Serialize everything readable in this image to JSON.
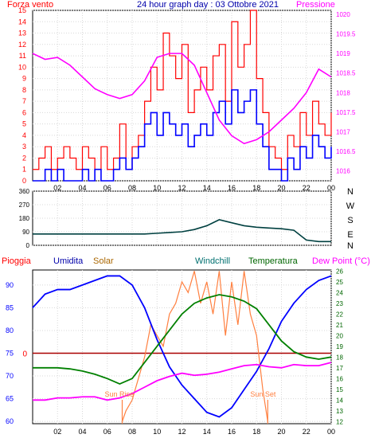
{
  "colors": {
    "wind": "#ff0000",
    "gust_avg": "#0000ff",
    "pressure": "#ff00ff",
    "direction": "#004040",
    "rain": "#ff0000",
    "humidity": "#0000ff",
    "solar": "#ff8040",
    "windchill": "#008080",
    "temperature": "#008000",
    "dewpoint": "#ff00ff",
    "label_umidita": "#0000aa",
    "label_solar": "#aa6600",
    "label_windchill": "#007070",
    "label_temperatura": "#006600",
    "label_dewpoint": "#ff00ff",
    "sun_label": "#ff8040",
    "frame": "#000000",
    "zero_line": "#aa0000"
  },
  "labels": {
    "forza_vento": "Forza vento",
    "title": "24 hour graph day : 03 Ottobre 2021",
    "pressione": "Pressione",
    "pioggia": "Pioggia",
    "umidita": "Umidita",
    "solar": "Solar",
    "windchill": "Windchill",
    "temperatura": "Temperatura",
    "dew_point": "Dew Point (°C)",
    "sun_rise": "Sun Rise",
    "sun_set": "Sun Set",
    "zero_mark": "0"
  },
  "chart_data": [
    {
      "type": "line",
      "name": "wind-pressure",
      "x_ticks": [
        "02",
        "04",
        "06",
        "08",
        "10",
        "12",
        "14",
        "16",
        "18",
        "20",
        "22",
        "00"
      ],
      "y_left_ticks": [
        "15",
        "14",
        "13",
        "12",
        "11",
        "10",
        "9",
        "8",
        "7",
        "6",
        "5",
        "4",
        "3",
        "2",
        "1",
        "0"
      ],
      "y_right_ticks": [
        "1020",
        "1019.5",
        "1019",
        "1018.5",
        "1018",
        "1017.5",
        "1017",
        "1016.5",
        "1016"
      ],
      "ylim_left": [
        0,
        15
      ],
      "ylim_right": [
        1015.75,
        1020.1
      ],
      "wind_x": [
        0,
        0.5,
        1,
        1.5,
        2,
        2.5,
        3,
        3.5,
        4,
        4.5,
        5,
        5.5,
        6,
        6.5,
        7,
        7.5,
        8,
        8.5,
        9,
        9.5,
        10,
        10.5,
        11,
        11.5,
        12,
        12.5,
        13,
        13.5,
        14,
        14.5,
        15,
        15.5,
        16,
        16.5,
        17,
        17.5,
        18,
        18.5,
        19,
        19.5,
        20,
        20.5,
        21,
        21.5,
        22,
        22.5,
        23,
        23.5,
        24
      ],
      "wind_y": [
        1,
        2,
        3,
        1,
        2,
        3,
        2,
        1,
        3,
        2,
        1,
        3,
        1,
        2,
        5,
        1,
        3,
        4,
        7,
        10,
        8,
        13,
        11,
        9,
        12,
        6,
        8,
        10,
        8,
        11,
        12,
        7,
        14,
        10,
        12,
        15,
        9,
        6,
        3,
        2,
        1,
        4,
        3,
        6,
        4,
        7,
        5,
        4,
        6
      ],
      "avg_y": [
        0,
        0,
        1,
        0,
        1,
        0,
        0,
        0,
        1,
        0,
        1,
        0,
        0,
        1,
        2,
        1,
        2,
        3,
        5,
        6,
        4,
        6,
        5,
        4,
        5,
        3,
        4,
        5,
        4,
        6,
        7,
        5,
        8,
        6,
        7,
        8,
        5,
        3,
        1,
        1,
        0,
        2,
        1,
        3,
        2,
        4,
        3,
        2,
        3
      ],
      "pressure_x": [
        0,
        1,
        2,
        3,
        4,
        5,
        6,
        7,
        8,
        9,
        10,
        11,
        12,
        13,
        14,
        15,
        16,
        17,
        18,
        19,
        20,
        21,
        22,
        23,
        24
      ],
      "pressure_y": [
        1019.0,
        1018.85,
        1018.9,
        1018.7,
        1018.4,
        1018.1,
        1017.95,
        1017.85,
        1017.95,
        1018.3,
        1018.9,
        1019.0,
        1019.0,
        1018.7,
        1018.0,
        1017.3,
        1016.9,
        1016.7,
        1016.8,
        1017.0,
        1017.3,
        1017.6,
        1018.0,
        1018.6,
        1018.4
      ]
    },
    {
      "type": "line",
      "name": "wind-direction",
      "y_ticks": [
        "360",
        "270",
        "180",
        "90",
        "0"
      ],
      "direction_labels": [
        "N",
        "W",
        "S",
        "E",
        "N"
      ],
      "ylim": [
        0,
        360
      ],
      "x": [
        0,
        1,
        2,
        3,
        4,
        5,
        6,
        7,
        8,
        9,
        10,
        11,
        12,
        13,
        14,
        15,
        16,
        17,
        18,
        19,
        20,
        21,
        22,
        23,
        24
      ],
      "y": [
        75,
        75,
        75,
        75,
        75,
        75,
        75,
        75,
        75,
        75,
        80,
        85,
        90,
        105,
        130,
        170,
        150,
        130,
        120,
        115,
        110,
        100,
        35,
        25,
        25
      ]
    },
    {
      "type": "line",
      "name": "humidity-temperature",
      "y_left_ticks": [
        "90",
        "85",
        "80",
        "75",
        "70",
        "65",
        "60"
      ],
      "y_right_ticks": [
        "26",
        "25",
        "24",
        "23",
        "22",
        "21",
        "20",
        "19",
        "18",
        "17",
        "16",
        "15",
        "14",
        "13",
        "12"
      ],
      "ylim_left": [
        59.5,
        93.3
      ],
      "ylim_right": [
        11.8,
        26.1
      ],
      "zero_rain_at_left": 75,
      "sun_rise_x": 7.2,
      "sun_set_x": 18.9,
      "x": [
        0,
        1,
        2,
        3,
        4,
        5,
        6,
        7,
        8,
        9,
        10,
        11,
        12,
        13,
        14,
        15,
        16,
        17,
        18,
        19,
        20,
        21,
        22,
        23,
        24
      ],
      "humidity": [
        85,
        88,
        89,
        89,
        90,
        91,
        92,
        92,
        90,
        85,
        78,
        72,
        68,
        65,
        62,
        61,
        63,
        67,
        71,
        76,
        82,
        86,
        89,
        91,
        92
      ],
      "temperature": [
        17.0,
        17.0,
        17.0,
        16.9,
        16.7,
        16.4,
        16.0,
        15.5,
        16.0,
        17.5,
        19.0,
        20.5,
        22.0,
        23.0,
        23.5,
        23.8,
        23.6,
        23.2,
        22.5,
        21.0,
        19.5,
        18.5,
        18.0,
        17.8,
        18.0
      ],
      "dewpoint": [
        14.0,
        14.0,
        14.2,
        14.2,
        14.3,
        14.3,
        14.0,
        14.2,
        14.6,
        15.2,
        15.8,
        16.2,
        16.5,
        16.3,
        16.4,
        16.6,
        16.9,
        17.2,
        17.3,
        17.1,
        17.0,
        17.3,
        17.2,
        17.2,
        17.5
      ],
      "solar_x": [
        7.2,
        7.5,
        8,
        8.5,
        9,
        9.5,
        10,
        10.5,
        11,
        11.5,
        12,
        12.5,
        13,
        13.5,
        14,
        14.5,
        15,
        15.5,
        16,
        16.5,
        17,
        17.5,
        18,
        18.5,
        18.9
      ],
      "solar": [
        12,
        13,
        14,
        16,
        18,
        21,
        20,
        19,
        22,
        23,
        25,
        24,
        26,
        23,
        25,
        22,
        26,
        20,
        25,
        21,
        26,
        22,
        20,
        15,
        12
      ]
    }
  ]
}
